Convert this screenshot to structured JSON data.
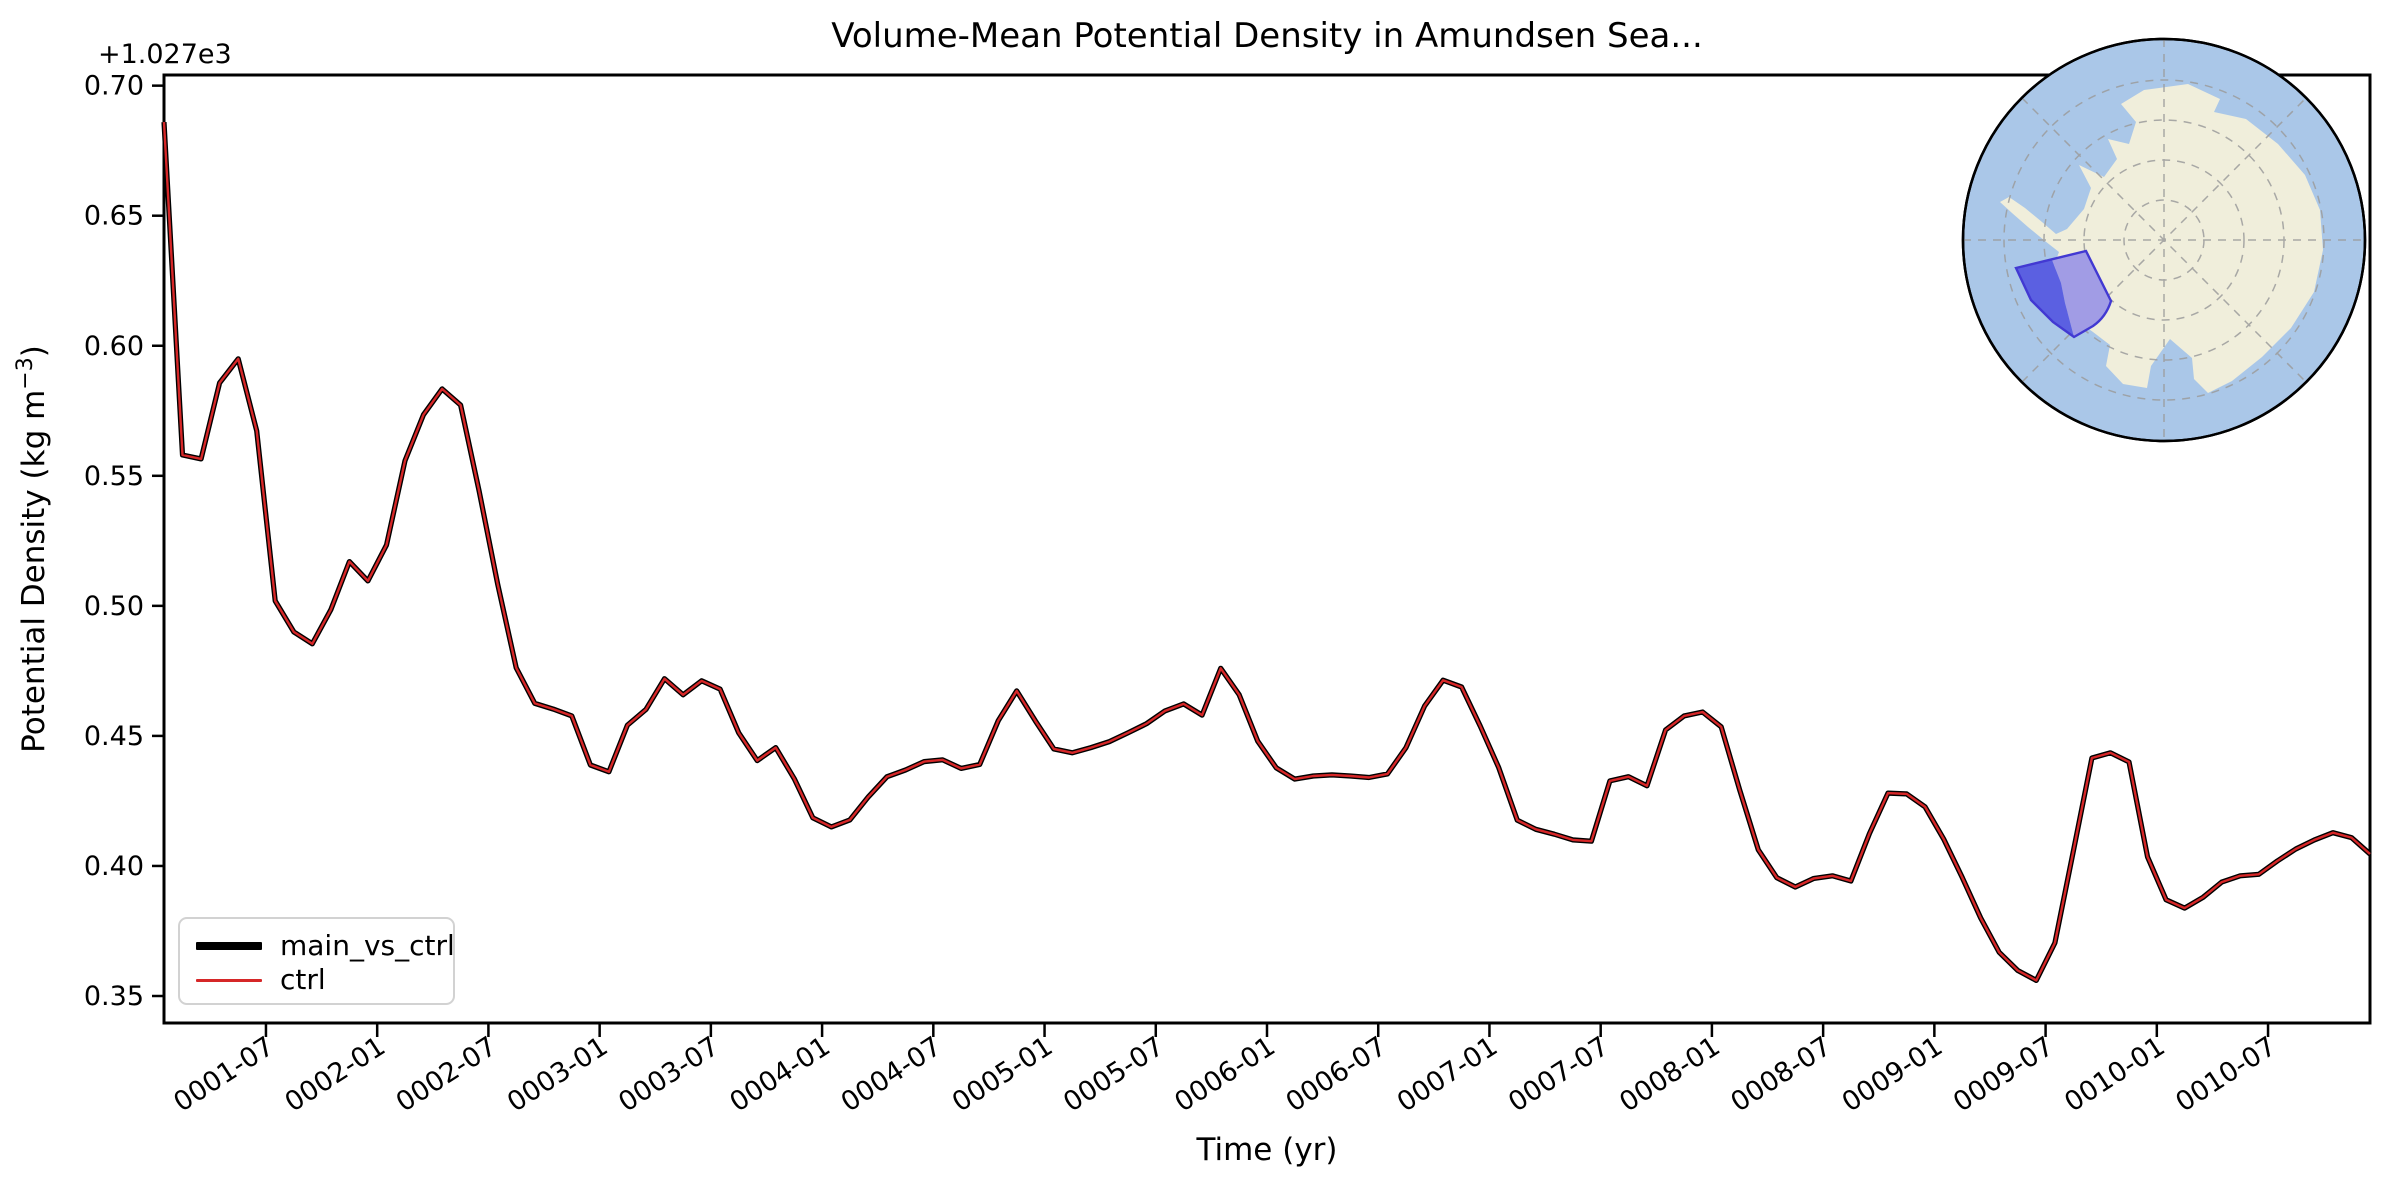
{
  "title": "Volume-Mean Potential Density in Amundsen Sea...",
  "axes": {
    "xlabel": "Time (yr)",
    "ylabel_parts": [
      "Potential Density (kg m",
      "−3",
      ")"
    ],
    "offset_text": "+1.027e3",
    "y_tick_labels": [
      "0.70",
      "0.65",
      "0.60",
      "0.55",
      "0.50",
      "0.45",
      "0.40",
      "0.35"
    ],
    "y_tick_values": [
      0.7,
      0.65,
      0.6,
      0.55,
      0.5,
      0.45,
      0.4,
      0.35
    ],
    "x_tick_labels": [
      "0001-07",
      "0002-01",
      "0002-07",
      "0003-01",
      "0003-07",
      "0004-01",
      "0004-07",
      "0005-01",
      "0005-07",
      "0006-01",
      "0006-07",
      "0007-01",
      "0007-07",
      "0008-01",
      "0008-07",
      "0009-01",
      "0009-07",
      "0010-01",
      "0010-07"
    ]
  },
  "legend": {
    "items": [
      {
        "label": "main_vs_ctrl",
        "color": "#000000",
        "swatch_height": 8
      },
      {
        "label": "ctrl",
        "color": "#d62728",
        "swatch_height": 3
      }
    ]
  },
  "chart_data": {
    "type": "line",
    "title": "Volume-Mean Potential Density in Amundsen Sea...",
    "xlabel": "Time (yr)",
    "ylabel": "Potential Density (kg m−3)",
    "x_start": "0001-01",
    "x_end": "0010-12",
    "cadence": "monthly",
    "y_offset_base": 1027,
    "ylim_minus_offset": [
      0.3396,
      0.7042
    ],
    "legend_position": "lower left",
    "grid": false,
    "values_minus_offset": [
      0.686,
      0.558,
      0.5565,
      0.5857,
      0.595,
      0.5673,
      0.5019,
      0.49,
      0.4854,
      0.4985,
      0.517,
      0.5096,
      0.5234,
      0.5558,
      0.5735,
      0.5834,
      0.5772,
      0.5442,
      0.5083,
      0.4762,
      0.4625,
      0.4603,
      0.4577,
      0.4388,
      0.4362,
      0.4541,
      0.4602,
      0.472,
      0.4658,
      0.4712,
      0.468,
      0.4512,
      0.4405,
      0.4455,
      0.4335,
      0.4185,
      0.415,
      0.4177,
      0.4266,
      0.4343,
      0.4369,
      0.4401,
      0.4408,
      0.4375,
      0.439,
      0.4558,
      0.4673,
      0.4558,
      0.445,
      0.4435,
      0.4455,
      0.4478,
      0.4512,
      0.4547,
      0.4596,
      0.4623,
      0.458,
      0.476,
      0.4658,
      0.448,
      0.4377,
      0.4334,
      0.4346,
      0.435,
      0.4346,
      0.434,
      0.4354,
      0.4455,
      0.4615,
      0.4714,
      0.4688,
      0.4538,
      0.4378,
      0.4176,
      0.4141,
      0.4122,
      0.41,
      0.4095,
      0.4327,
      0.4343,
      0.4308,
      0.4523,
      0.4577,
      0.4592,
      0.4535,
      0.4292,
      0.4062,
      0.3955,
      0.3919,
      0.3952,
      0.3962,
      0.3942,
      0.4125,
      0.428,
      0.4277,
      0.4227,
      0.4104,
      0.3956,
      0.38,
      0.3668,
      0.3598,
      0.356,
      0.3704,
      0.4058,
      0.4415,
      0.4435,
      0.44,
      0.4035,
      0.387,
      0.3838,
      0.388,
      0.3938,
      0.3962,
      0.3968,
      0.4019,
      0.4065,
      0.41,
      0.4128,
      0.4109,
      0.4046
    ],
    "series": [
      {
        "name": "main_vs_ctrl",
        "color": "#000000",
        "linewidth": 5.2,
        "values_ref": "values_minus_offset"
      },
      {
        "name": "ctrl",
        "color": "#d62728",
        "linewidth": 2.4,
        "values_ref": "values_minus_offset"
      }
    ]
  },
  "inset_map": {
    "ocean_color": "#aac7e8",
    "land_color": "#f0eedb",
    "graticule_color": "#9c9c9c",
    "outline_color": "#000000",
    "region_fill_light": "#a19ce5",
    "region_fill_dark": "#5b60e1",
    "region_edge_color": "#4239d2"
  }
}
